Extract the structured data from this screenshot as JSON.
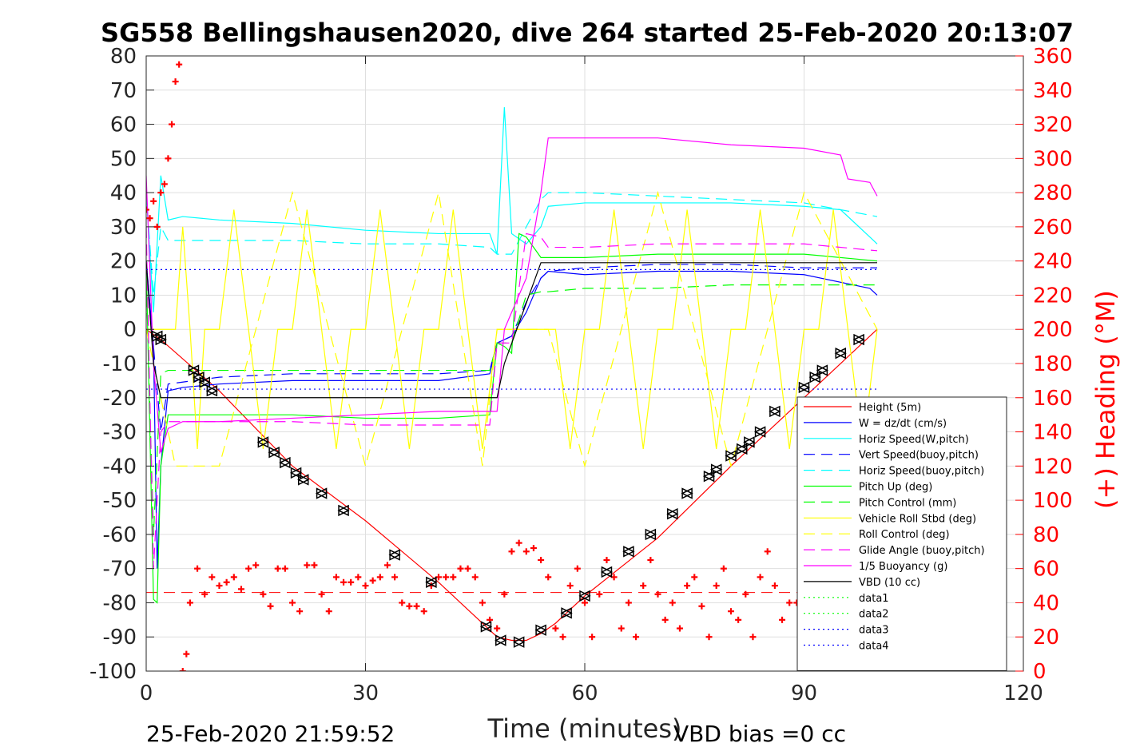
{
  "chart_data": {
    "type": "line",
    "title": "SG558 Bellingshausen2020, dive 264 started 25-Feb-2020 20:13:07",
    "xlabel": "Time (minutes)",
    "ylabel": "",
    "ylabel_right": "(+) Heading (°M)",
    "xlim": [
      0,
      120
    ],
    "ylim": [
      -100,
      80
    ],
    "ylim_right": [
      0,
      360
    ],
    "x_ticks": [
      "0",
      "30",
      "60",
      "90",
      "120"
    ],
    "y_ticks": [
      "80",
      "70",
      "60",
      "50",
      "40",
      "30",
      "20",
      "10",
      "0",
      "-10",
      "-20",
      "-30",
      "-40",
      "-50",
      "-60",
      "-70",
      "-80",
      "-90",
      "-100"
    ],
    "y_ticks_right": [
      "360",
      "340",
      "320",
      "300",
      "280",
      "260",
      "240",
      "220",
      "200",
      "180",
      "160",
      "140",
      "120",
      "100",
      "80",
      "60",
      "40",
      "20",
      "0"
    ],
    "grid": true,
    "legend_position": "bottom-right",
    "footer_left": "25-Feb-2020 21:59:52",
    "footer_right": "VBD bias =0 cc",
    "series": [
      {
        "name": "Height (5m)",
        "color": "#ff0000",
        "style": "solid",
        "x": [
          0,
          2,
          10,
          20,
          30,
          40,
          46,
          48,
          50,
          52,
          54,
          56,
          60,
          70,
          80,
          90,
          100
        ],
        "y": [
          0,
          -3,
          -18,
          -40,
          -56,
          -74,
          -86,
          -90,
          -91,
          -91,
          -89,
          -86,
          -78,
          -61,
          -40,
          -20,
          0
        ]
      },
      {
        "name": "W = dz/dt (cm/s)",
        "color": "#0000ff",
        "style": "solid",
        "x": [
          0,
          1,
          1.5,
          2,
          3,
          5,
          10,
          20,
          30,
          40,
          47,
          48,
          50,
          52,
          54,
          55,
          60,
          70,
          80,
          90,
          99,
          100
        ],
        "y": [
          20,
          -5,
          -70,
          -40,
          -18,
          -17,
          -16,
          -15,
          -15,
          -15,
          -13,
          -4,
          -2,
          5,
          15,
          17,
          16,
          17,
          17,
          16,
          12,
          10
        ]
      },
      {
        "name": "Horiz Speed(W,pitch)",
        "color": "#00ffff",
        "style": "solid",
        "x": [
          0,
          1,
          2,
          3,
          5,
          10,
          20,
          30,
          40,
          47,
          48,
          49,
          50,
          52,
          54,
          55,
          60,
          70,
          80,
          90,
          95,
          99,
          100
        ],
        "y": [
          40,
          5,
          45,
          32,
          33,
          32,
          31,
          29,
          28,
          28,
          22,
          65,
          28,
          25,
          30,
          36,
          37,
          37,
          37,
          36,
          35,
          27,
          25
        ]
      },
      {
        "name": "Vert Speed(buoy,pitch)",
        "color": "#0000ff",
        "style": "dash",
        "x": [
          0,
          1,
          2,
          3,
          10,
          20,
          30,
          40,
          47,
          48,
          50,
          52,
          54,
          55,
          60,
          70,
          80,
          90,
          100
        ],
        "y": [
          20,
          -5,
          -30,
          -16,
          -14,
          -13,
          -13,
          -13,
          -12,
          -4,
          -2,
          8,
          15,
          17,
          18,
          19,
          19,
          18,
          18
        ]
      },
      {
        "name": "Horiz Speed(buoy,pitch)",
        "color": "#00ffff",
        "style": "dash",
        "x": [
          0,
          1,
          2,
          3,
          10,
          20,
          30,
          40,
          47,
          48,
          50,
          52,
          54,
          55,
          60,
          70,
          80,
          90,
          100
        ],
        "y": [
          40,
          10,
          30,
          26,
          26,
          26,
          25,
          25,
          24,
          22,
          22,
          30,
          38,
          40,
          40,
          39,
          38,
          37,
          33
        ]
      },
      {
        "name": "Pitch Up (deg)",
        "color": "#00ff00",
        "style": "solid",
        "x": [
          0,
          1,
          1.5,
          2,
          3,
          10,
          20,
          30,
          40,
          47,
          48,
          49,
          50,
          51,
          52,
          54,
          55,
          60,
          70,
          80,
          90,
          100
        ],
        "y": [
          20,
          -79,
          -80,
          -40,
          -25,
          -25,
          -25,
          -26,
          -26,
          -25,
          -4,
          -5,
          -7,
          28,
          27,
          21,
          21,
          21,
          22,
          22,
          22,
          20
        ]
      },
      {
        "name": "Pitch Control (mm)",
        "color": "#00ff00",
        "style": "dash",
        "x": [
          0,
          1,
          2,
          3,
          10,
          20,
          30,
          40,
          47,
          48,
          50,
          52,
          54,
          55,
          60,
          70,
          80,
          90,
          100
        ],
        "y": [
          15,
          -60,
          -13,
          -12,
          -12,
          -12,
          -12,
          -12,
          -12,
          -4,
          -4,
          10,
          11,
          11,
          12,
          12,
          13,
          13,
          13
        ]
      },
      {
        "name": "Vehicle Roll Stbd (deg)",
        "color": "#ffff00",
        "style": "solid",
        "x": [
          0,
          4,
          5,
          6,
          7,
          8,
          10,
          12,
          14,
          16,
          18,
          20,
          22,
          24,
          26,
          28,
          30,
          32,
          34,
          36,
          38,
          40,
          42,
          44,
          46,
          48,
          50,
          52,
          54,
          56,
          58,
          60,
          62,
          64,
          66,
          68,
          70,
          72,
          74,
          76,
          78,
          80,
          82,
          84,
          86,
          88,
          90,
          92,
          94,
          96,
          98,
          100
        ],
        "y": [
          0,
          0,
          30,
          0,
          -35,
          0,
          0,
          35,
          0,
          -35,
          0,
          0,
          35,
          0,
          -35,
          0,
          0,
          35,
          0,
          -35,
          0,
          0,
          35,
          0,
          -35,
          0,
          0,
          0,
          0,
          0,
          -35,
          0,
          0,
          35,
          0,
          -35,
          0,
          0,
          35,
          0,
          -35,
          0,
          0,
          35,
          0,
          -35,
          0,
          0,
          35,
          0,
          -35,
          0
        ]
      },
      {
        "name": "Roll Control (deg)",
        "color": "#ffff00",
        "style": "dash",
        "x": [
          0,
          4,
          10,
          20,
          30,
          40,
          46,
          48,
          50,
          55,
          60,
          70,
          80,
          90,
          100
        ],
        "y": [
          0,
          -40,
          -40,
          40,
          -40,
          40,
          -40,
          0,
          0,
          0,
          -40,
          40,
          -40,
          40,
          0
        ]
      },
      {
        "name": "Glide Angle (buoy,pitch)",
        "color": "#ff00ff",
        "style": "dash",
        "x": [
          0,
          1,
          2,
          3,
          10,
          20,
          30,
          40,
          47,
          48,
          50,
          52,
          54,
          55,
          60,
          70,
          80,
          90,
          100
        ],
        "y": [
          30,
          -70,
          -30,
          -27,
          -27,
          -27,
          -28,
          -28,
          -28,
          -4,
          -4,
          28,
          27,
          24,
          24,
          25,
          25,
          25,
          23
        ]
      },
      {
        "name": "1/5 Buoyancy (g)",
        "color": "#ff00ff",
        "style": "solid",
        "x": [
          0,
          1,
          2,
          3,
          5,
          10,
          20,
          30,
          40,
          48,
          49,
          52,
          54,
          55,
          60,
          70,
          80,
          90,
          95,
          96,
          99,
          100
        ],
        "y": [
          45,
          -10,
          -36,
          -29,
          -27,
          -27,
          -26,
          -25,
          -24,
          -24,
          0,
          15,
          40,
          56,
          56,
          56,
          54,
          53,
          51,
          44,
          43,
          39
        ]
      },
      {
        "name": "VBD (10 cc)",
        "color": "#000000",
        "style": "solid",
        "x": [
          0,
          1,
          2,
          48,
          49,
          54,
          100
        ],
        "y": [
          20,
          -10,
          -20,
          -20,
          -10,
          19.5,
          19.5
        ]
      },
      {
        "name": "data1",
        "color": "#00ff00",
        "style": "dot",
        "x": [],
        "y": []
      },
      {
        "name": "data2",
        "color": "#00ff00",
        "style": "dot",
        "x": [],
        "y": []
      },
      {
        "name": "data3",
        "color": "#0000ff",
        "style": "dot",
        "x": [
          0,
          100
        ],
        "y": [
          17.5,
          17.5
        ]
      },
      {
        "name": "data4",
        "color": "#0000ff",
        "style": "dot",
        "x": [
          0,
          100
        ],
        "y": [
          -17.5,
          -17.5
        ]
      }
    ],
    "red_dash_level": {
      "color": "#ff0000",
      "x": [
        0,
        100
      ],
      "y": [
        -77,
        -77
      ]
    },
    "heading": {
      "axis": "right",
      "color": "#ff0000",
      "marker": "+",
      "x": [
        0,
        0.5,
        1,
        1.5,
        2,
        2.5,
        3,
        3.5,
        4,
        4.5,
        5,
        5.5,
        6,
        7,
        8,
        9,
        10,
        11,
        12,
        13,
        14,
        15,
        16,
        17,
        18,
        19,
        20,
        21,
        22,
        23,
        24,
        25,
        26,
        27,
        28,
        29,
        30,
        31,
        32,
        33,
        34,
        35,
        36,
        37,
        38,
        39,
        40,
        41,
        42,
        43,
        44,
        45,
        46,
        47,
        48,
        49,
        50,
        51,
        52,
        53,
        54,
        55,
        56,
        57,
        58,
        59,
        60,
        61,
        62,
        63,
        64,
        65,
        66,
        67,
        68,
        69,
        70,
        71,
        72,
        73,
        74,
        75,
        76,
        77,
        78,
        79,
        80,
        81,
        82,
        83,
        84,
        85,
        86,
        87,
        88,
        89,
        90
      ],
      "y": [
        270,
        265,
        275,
        260,
        280,
        285,
        300,
        320,
        345,
        355,
        0,
        10,
        40,
        60,
        45,
        55,
        50,
        52,
        55,
        48,
        60,
        62,
        45,
        38,
        60,
        60,
        40,
        35,
        62,
        62,
        45,
        35,
        55,
        52,
        52,
        55,
        50,
        53,
        55,
        62,
        55,
        40,
        38,
        38,
        35,
        50,
        55,
        55,
        55,
        60,
        60,
        55,
        40,
        30,
        25,
        45,
        70,
        75,
        70,
        72,
        65,
        55,
        25,
        20,
        50,
        60,
        40,
        20,
        45,
        65,
        55,
        25,
        40,
        20,
        50,
        65,
        45,
        30,
        40,
        25,
        50,
        55,
        38,
        20,
        50,
        60,
        35,
        30,
        45,
        20,
        55,
        70,
        50,
        30,
        40,
        40,
        35
      ]
    },
    "triangles": {
      "color": "#000000",
      "x": [
        1.5,
        2,
        6.5,
        7.2,
        8,
        9,
        16,
        17.5,
        19,
        20.5,
        21.5,
        24,
        27,
        34,
        39,
        46.5,
        48.5,
        51,
        54,
        57.5,
        60,
        63,
        66,
        69,
        72,
        74,
        77,
        78,
        80,
        81.5,
        82.5,
        84,
        86,
        90,
        91.5,
        92.5,
        95,
        97.5
      ],
      "y": [
        -2,
        -3,
        -12,
        -14,
        -15.5,
        -18,
        -33,
        -36,
        -39,
        -42,
        -44,
        -48,
        -53,
        -66,
        -74,
        -87,
        -91,
        -91.5,
        -88,
        -83,
        -78,
        -71,
        -65,
        -60,
        -54,
        -48,
        -43,
        -41,
        -37,
        -35,
        -33,
        -30,
        -24,
        -17,
        -14,
        -12,
        -7,
        -3
      ]
    }
  }
}
